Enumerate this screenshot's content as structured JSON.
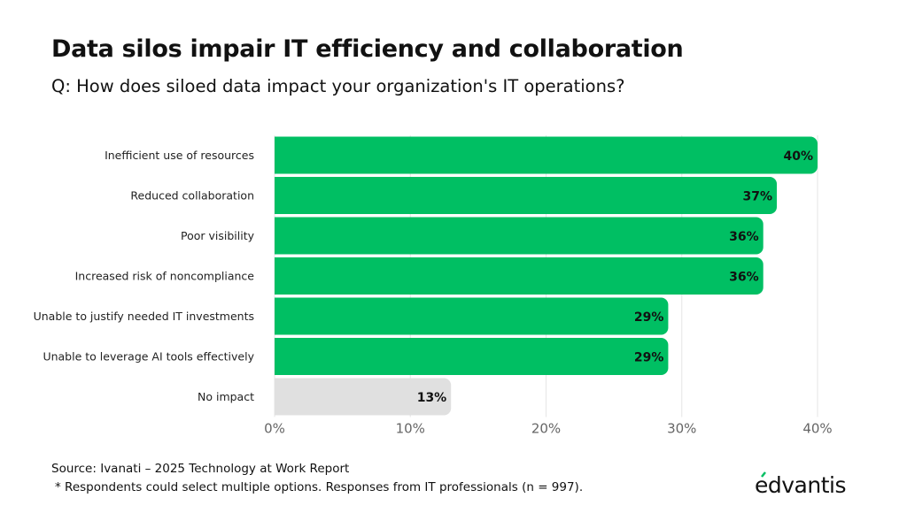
{
  "title": "Data silos impair IT efficiency and collaboration",
  "subtitle": "Q: How does siloed data impact your organization's IT operations?",
  "source": "Source: Ivanati – 2025 Technology at Work Report",
  "note": "* Respondents could select multiple options. Responses from IT professionals (n = 997).",
  "logo": "edvantis",
  "colors": {
    "highlight": "#00BF63",
    "muted": "#E0E0E0",
    "grid": "#E6E6E6"
  },
  "chart_data": {
    "type": "bar",
    "orientation": "horizontal",
    "title": "Data silos impair IT efficiency and collaboration",
    "categories": [
      "Inefficient use of resources",
      "Reduced collaboration",
      "Poor visibility",
      "Increased risk of noncompliance",
      "Unable to justify needed IT investments",
      "Unable to leverage AI tools effectively",
      "No impact"
    ],
    "values": [
      40,
      37,
      36,
      36,
      29,
      29,
      13
    ],
    "data_labels": [
      "40%",
      "37%",
      "36%",
      "36%",
      "29%",
      "29%",
      "13%"
    ],
    "bar_colors": [
      "#00BF63",
      "#00BF63",
      "#00BF63",
      "#00BF63",
      "#00BF63",
      "#00BF63",
      "#E0E0E0"
    ],
    "xlim": [
      0,
      40
    ],
    "xticks": [
      0,
      10,
      20,
      30,
      40
    ],
    "xtick_labels": [
      "0%",
      "10%",
      "20%",
      "30%",
      "40%"
    ],
    "grid": true,
    "xlabel": "",
    "ylabel": ""
  }
}
